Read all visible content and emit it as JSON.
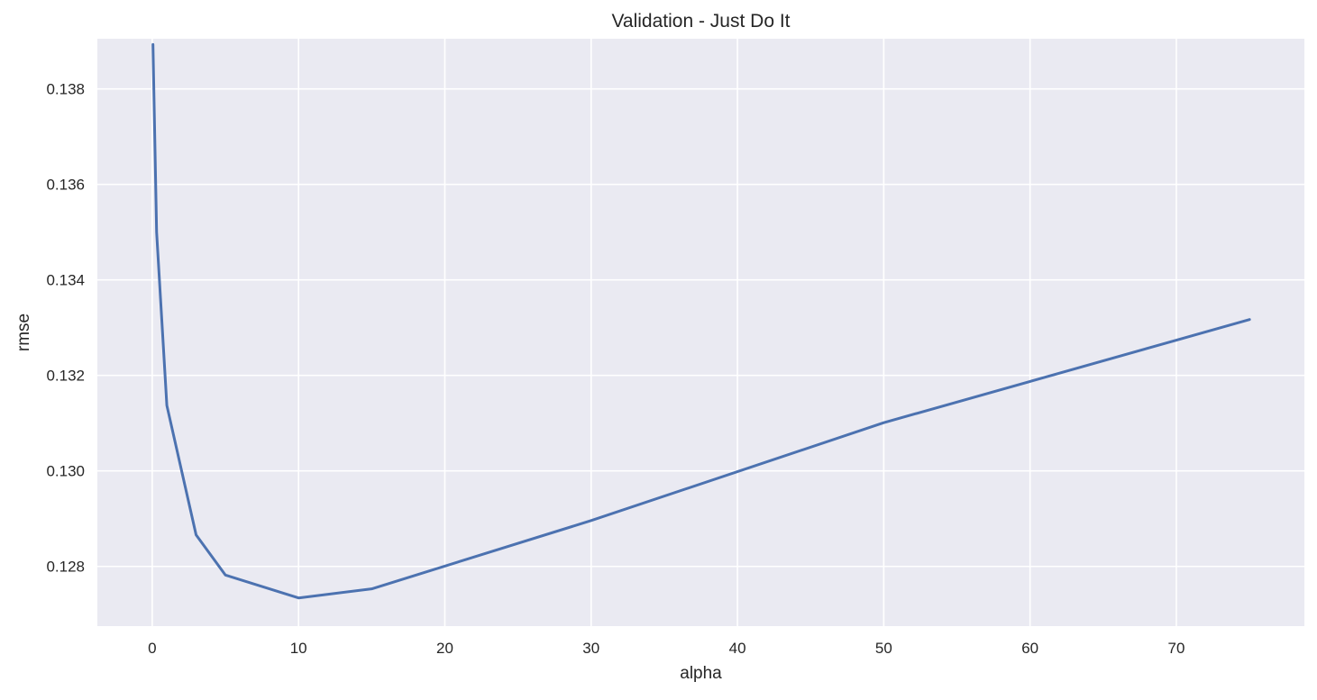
{
  "chart_data": {
    "type": "line",
    "title": "Validation - Just Do It",
    "xlabel": "alpha",
    "ylabel": "rmse",
    "xlim": [
      -3.75,
      78.75
    ],
    "ylim": [
      0.12675,
      0.13905
    ],
    "xticks": [
      0,
      10,
      20,
      30,
      40,
      50,
      60,
      70
    ],
    "xtick_labels": [
      "0",
      "10",
      "20",
      "30",
      "40",
      "50",
      "60",
      "70"
    ],
    "yticks": [
      0.128,
      0.13,
      0.132,
      0.134,
      0.136,
      0.138
    ],
    "ytick_labels": [
      "0.128",
      "0.130",
      "0.132",
      "0.134",
      "0.136",
      "0.138"
    ],
    "grid": true,
    "background_color": "#eaeaf2",
    "grid_color": "#ffffff",
    "line_color": "#4c72b0",
    "series": [
      {
        "x": [
          0.05,
          0.3,
          1,
          3,
          5,
          10,
          15,
          30,
          50,
          75
        ],
        "y": [
          0.13893,
          0.135,
          0.13137,
          0.12866,
          0.12782,
          0.12734,
          0.12753,
          0.12896,
          0.13101,
          0.13317
        ]
      }
    ]
  }
}
